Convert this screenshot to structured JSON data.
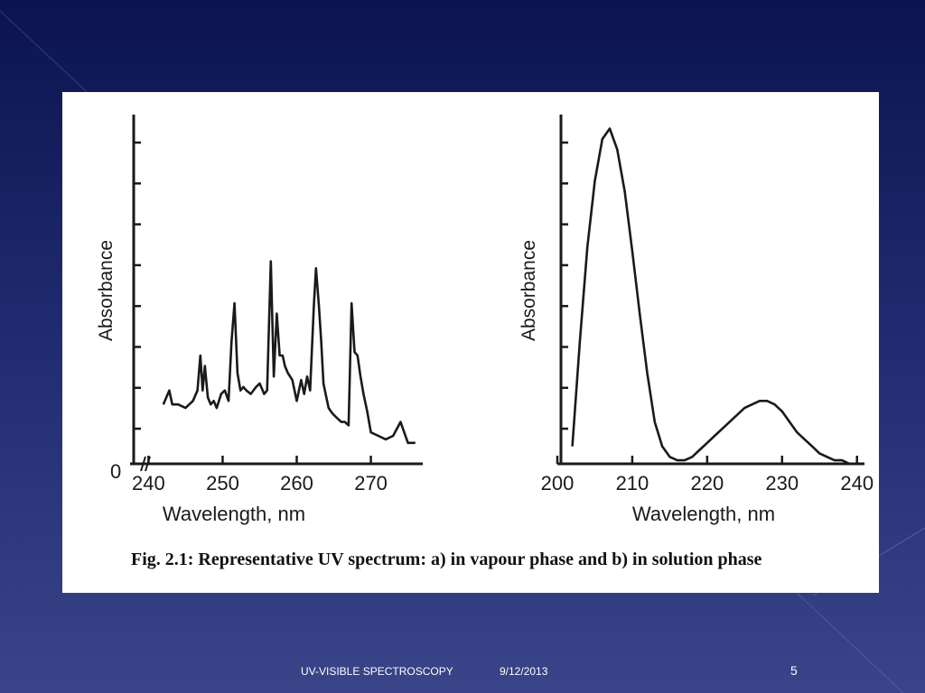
{
  "colors": {
    "bg_top": "#0b1450",
    "bg_bottom": "#3a4488",
    "panel": "#ffffff",
    "ink": "#1a1a1a"
  },
  "caption": "Fig. 2.1:  Representative UV spectrum: a) in vapour phase and b) in solution  phase",
  "footer": {
    "title": "UV-VISIBLE SPECTROSCOPY",
    "date": "9/12/2013",
    "page": "5"
  },
  "chart_data": [
    {
      "type": "line",
      "xlabel": "Wavelength, nm",
      "ylabel": "Absorbance",
      "origin_label": "0",
      "axis_break": true,
      "xlim": [
        238,
        277
      ],
      "ylim": [
        0,
        1
      ],
      "xticks": [
        240,
        250,
        260,
        270
      ],
      "ytick_count": 8,
      "grid": false,
      "series": [
        {
          "x": [
            242.0,
            242.8,
            243.2,
            244.0,
            245.0,
            246.0,
            246.6,
            247.0,
            247.3,
            247.6,
            248.0,
            248.4,
            248.8,
            249.2,
            249.8,
            250.3,
            250.8,
            251.2,
            251.6,
            252.0,
            252.4,
            252.8,
            253.2,
            253.8,
            254.5,
            255.0,
            255.6,
            256.0,
            256.5,
            256.9,
            257.3,
            257.7,
            258.1,
            258.4,
            258.8,
            259.4,
            260.0,
            260.6,
            261.0,
            261.4,
            261.8,
            262.3,
            262.6,
            263.0,
            263.3,
            263.6,
            264.0,
            264.3,
            264.6,
            265.0,
            265.5,
            266.0,
            266.5,
            267.0,
            267.4,
            267.8,
            268.2,
            268.6,
            269.0,
            269.5,
            270.0,
            271.0,
            272.0,
            273.0,
            274.0,
            274.5,
            275.0,
            276.0
          ],
          "y": [
            0.17,
            0.21,
            0.17,
            0.17,
            0.16,
            0.18,
            0.21,
            0.31,
            0.21,
            0.28,
            0.19,
            0.17,
            0.18,
            0.16,
            0.2,
            0.21,
            0.18,
            0.35,
            0.46,
            0.26,
            0.21,
            0.22,
            0.21,
            0.2,
            0.22,
            0.23,
            0.2,
            0.21,
            0.58,
            0.25,
            0.43,
            0.31,
            0.31,
            0.28,
            0.26,
            0.24,
            0.18,
            0.24,
            0.2,
            0.25,
            0.21,
            0.45,
            0.56,
            0.45,
            0.35,
            0.23,
            0.19,
            0.16,
            0.15,
            0.14,
            0.13,
            0.12,
            0.12,
            0.11,
            0.46,
            0.32,
            0.31,
            0.25,
            0.2,
            0.15,
            0.09,
            0.08,
            0.07,
            0.08,
            0.12,
            0.09,
            0.06,
            0.06
          ]
        }
      ]
    },
    {
      "type": "line",
      "xlabel": "Wavelength, nm",
      "ylabel": "Absorbance",
      "xlim": [
        200,
        241
      ],
      "ylim": [
        0,
        1
      ],
      "xticks": [
        200,
        210,
        220,
        230,
        240
      ],
      "ytick_count": 8,
      "grid": false,
      "series": [
        {
          "x": [
            202,
            203,
            204,
            205,
            206,
            207,
            208,
            209,
            210,
            211,
            212,
            213,
            214,
            215,
            216,
            217,
            218,
            219,
            220,
            221,
            222,
            223,
            224,
            225,
            226,
            227,
            228,
            229,
            230,
            231,
            232,
            233,
            234,
            235,
            236,
            237,
            238,
            239,
            240
          ],
          "y": [
            0.05,
            0.35,
            0.62,
            0.81,
            0.93,
            0.96,
            0.9,
            0.78,
            0.61,
            0.43,
            0.26,
            0.12,
            0.05,
            0.02,
            0.01,
            0.01,
            0.02,
            0.04,
            0.06,
            0.08,
            0.1,
            0.12,
            0.14,
            0.16,
            0.17,
            0.18,
            0.18,
            0.17,
            0.15,
            0.12,
            0.09,
            0.07,
            0.05,
            0.03,
            0.02,
            0.01,
            0.01,
            0.0,
            0.0
          ]
        }
      ]
    }
  ]
}
